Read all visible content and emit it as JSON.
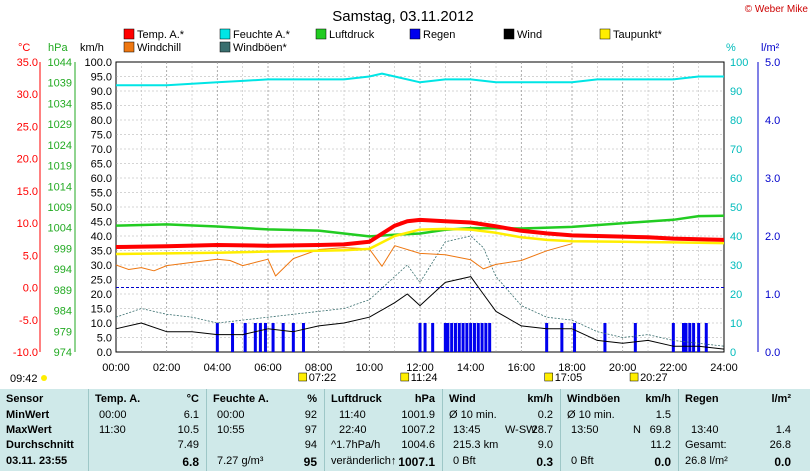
{
  "header": {
    "title": "Samstag, 03.11.2012",
    "copyright": "© Weber Mike"
  },
  "colors": {
    "temp": "#ff0000",
    "humidity": "#00e5e5",
    "pressure": "#22cc22",
    "rain": "#0000ee",
    "wind": "#000000",
    "dewpoint": "#ffee00",
    "windchill": "#ee7711",
    "gust": "#3a6f6f",
    "grid": "#888888"
  },
  "chart_data": {
    "type": "line",
    "title": "Samstag, 03.11.2012",
    "x_ticks": [
      "00:00",
      "02:00",
      "04:00",
      "06:00",
      "08:00",
      "10:00",
      "12:00",
      "14:00",
      "16:00",
      "18:00",
      "20:00",
      "22:00",
      "24:00"
    ],
    "axes": {
      "temp": {
        "label": "°C",
        "ticks": [
          "35.0",
          "30.0",
          "25.0",
          "20.0",
          "15.0",
          "10.0",
          "5.0",
          "0.0",
          "-5.0",
          "-10.0"
        ],
        "range": [
          -10,
          35
        ]
      },
      "pressure": {
        "label": "hPa",
        "ticks": [
          "1044",
          "1039",
          "1034",
          "1029",
          "1024",
          "1019",
          "1014",
          "1009",
          "1004",
          "999",
          "994",
          "989",
          "984",
          "979",
          "974"
        ],
        "range": [
          974,
          1044
        ]
      },
      "wind": {
        "label": "km/h",
        "ticks": [
          "100.0",
          "95.0",
          "90.0",
          "85.0",
          "80.0",
          "75.0",
          "70.0",
          "65.0",
          "60.0",
          "55.0",
          "50.0",
          "45.0",
          "40.0",
          "35.0",
          "30.0",
          "25.0",
          "20.0",
          "15.0",
          "10.0",
          "5.0",
          "0.0"
        ],
        "range": [
          0,
          100
        ]
      },
      "humidity": {
        "label": "%",
        "ticks": [
          "100",
          "90",
          "80",
          "70",
          "60",
          "50",
          "40",
          "30",
          "20",
          "10",
          "0"
        ],
        "range": [
          0,
          100
        ]
      },
      "rain": {
        "label": "l/m²",
        "ticks": [
          "5.0",
          "4.0",
          "3.0",
          "2.0",
          "1.0",
          "0.0"
        ],
        "range": [
          0,
          5
        ]
      }
    },
    "legend": [
      {
        "name": "Temp. A.*",
        "color": "#ff0000"
      },
      {
        "name": "Feuchte A.*",
        "color": "#00e5e5"
      },
      {
        "name": "Luftdruck",
        "color": "#22cc22"
      },
      {
        "name": "Regen",
        "color": "#0000ee"
      },
      {
        "name": "Wind",
        "color": "#000000"
      },
      {
        "name": "Taupunkt*",
        "color": "#ffee00"
      },
      {
        "name": "Windchill",
        "color": "#ee7711"
      },
      {
        "name": "Windböen*",
        "color": "#3a6f6f"
      }
    ],
    "series": {
      "temp": {
        "x": [
          0,
          2,
          4,
          6,
          8,
          9,
          10,
          11,
          11.5,
          12,
          13,
          14,
          15,
          16,
          17,
          18,
          19,
          20,
          21,
          22,
          23,
          24
        ],
        "y": [
          6.3,
          6.4,
          6.6,
          6.5,
          6.6,
          6.7,
          7.1,
          9.6,
          10.3,
          10.5,
          10.3,
          10.1,
          9.5,
          8.8,
          8.4,
          8.1,
          8.0,
          7.9,
          7.8,
          7.6,
          7.5,
          7.4
        ]
      },
      "humidity": {
        "x": [
          0,
          2,
          3,
          4,
          5,
          6,
          7,
          8,
          9,
          10,
          10.5,
          11,
          12,
          13,
          14,
          15,
          16,
          17,
          18,
          19,
          20,
          21,
          22,
          23,
          24
        ],
        "y": [
          92,
          92,
          92.5,
          93,
          93.5,
          94,
          94,
          94,
          94,
          95,
          96,
          95,
          93,
          94,
          94,
          93,
          93,
          93,
          93,
          94,
          94,
          94,
          94,
          95,
          95
        ]
      },
      "pressure": {
        "x": [
          0,
          2,
          4,
          6,
          8,
          10,
          11,
          12,
          13,
          14,
          16,
          18,
          20,
          22,
          23,
          24
        ],
        "y": [
          1004.5,
          1004.8,
          1004.3,
          1003.6,
          1003.3,
          1001.9,
          1002.3,
          1002.6,
          1003.5,
          1003.9,
          1003.8,
          1004.2,
          1005.1,
          1005.9,
          1006.8,
          1006.9
        ]
      },
      "dewpoint": {
        "x": [
          0,
          2,
          4,
          6,
          8,
          9,
          10,
          11,
          12,
          13,
          14,
          15,
          16,
          17,
          18,
          20,
          22,
          24
        ],
        "y": [
          5.2,
          5.3,
          5.4,
          5.6,
          5.7,
          5.8,
          6.0,
          8.0,
          9.0,
          9.1,
          9.0,
          8.5,
          7.8,
          7.4,
          7.2,
          7.1,
          7.0,
          6.9
        ]
      },
      "windchill": {
        "x": [
          0,
          0.5,
          1,
          1.5,
          2,
          3,
          4,
          4.5,
          5,
          5.5,
          6,
          6.3,
          7,
          8,
          9,
          10,
          10.5,
          11,
          12,
          13,
          14,
          14.5,
          15,
          16,
          17,
          18
        ],
        "y": [
          3.5,
          2.8,
          3.1,
          2.6,
          3.4,
          3.9,
          4.4,
          4.2,
          3.4,
          3.9,
          4.4,
          1.8,
          4.5,
          5.9,
          6.2,
          6.0,
          3.3,
          6.5,
          5.3,
          5.1,
          4.3,
          2.9,
          3.6,
          4.2,
          5.7,
          6.8
        ]
      },
      "wind": {
        "x": [
          0,
          1,
          2,
          3,
          4,
          5,
          6,
          7,
          8,
          9,
          10,
          11,
          11.5,
          12,
          13,
          14,
          14.5,
          15,
          16,
          17,
          18,
          19,
          20,
          21,
          22,
          23,
          24
        ],
        "y": [
          8,
          10,
          7,
          7,
          6,
          6,
          8,
          7,
          9,
          10,
          12,
          17,
          20,
          16,
          24,
          26,
          20,
          14,
          9,
          8,
          8,
          4,
          3,
          4,
          2,
          2,
          1
        ]
      },
      "gust": {
        "x": [
          0,
          1,
          2,
          3,
          4,
          5,
          6,
          7,
          8,
          9,
          10,
          11,
          11.5,
          12,
          13,
          14,
          14.5,
          15,
          16,
          17,
          18,
          19,
          20,
          21,
          22,
          23,
          24
        ],
        "y": [
          12,
          15,
          13,
          12,
          10,
          11,
          12,
          13,
          14,
          15,
          18,
          26,
          30,
          24,
          38,
          40,
          36,
          26,
          16,
          12,
          11,
          7,
          5,
          6,
          4,
          3,
          2
        ]
      },
      "rain": {
        "x": [
          4.0,
          4.6,
          5.1,
          5.5,
          5.7,
          5.9,
          6.2,
          6.6,
          7.0,
          7.4,
          12.0,
          12.2,
          12.5,
          13.0,
          13.1,
          13.25,
          13.4,
          13.55,
          13.7,
          13.85,
          14.0,
          14.15,
          14.3,
          14.45,
          14.6,
          14.75,
          17.0,
          17.6,
          18.1,
          19.3,
          20.5,
          22.0,
          22.4,
          22.5,
          22.65,
          22.8,
          23.0,
          23.3
        ],
        "y": [
          0.5,
          0.5,
          0.5,
          0.5,
          0.5,
          0.5,
          0.5,
          0.5,
          0.5,
          0.5,
          0.5,
          0.5,
          0.5,
          0.5,
          0.5,
          0.5,
          0.5,
          0.5,
          0.5,
          0.5,
          0.5,
          0.5,
          0.5,
          0.5,
          0.5,
          0.5,
          0.5,
          0.5,
          0.5,
          0.5,
          0.5,
          0.5,
          0.5,
          0.5,
          0.5,
          0.5,
          0.5,
          0.5
        ]
      }
    },
    "markers": {
      "left": "09:42",
      "items": [
        {
          "t": "07:22",
          "x": 7.37
        },
        {
          "t": "11:24",
          "x": 11.4
        },
        {
          "t": "17:05",
          "x": 17.08
        },
        {
          "t": "20:27",
          "x": 20.45
        }
      ]
    },
    "grid": true
  },
  "stats": {
    "sensor": {
      "head": "Sensor",
      "rows": [
        "MinWert",
        "MaxWert",
        "Durchschnitt",
        "03.11.  23:55"
      ]
    },
    "temp": {
      "head": "Temp. A.",
      "unit": "°C",
      "rows": [
        [
          "00:00",
          "6.1"
        ],
        [
          "11:30",
          "10.5"
        ],
        [
          "",
          "7.49"
        ],
        [
          "",
          "6.8"
        ]
      ]
    },
    "humidity": {
      "head": "Feuchte A.",
      "unit": "%",
      "rows": [
        [
          "00:00",
          "92"
        ],
        [
          "10:55",
          "97"
        ],
        [
          "",
          "94"
        ],
        [
          "7.27 g/m³",
          "95"
        ]
      ]
    },
    "pressure": {
      "head": "Luftdruck",
      "unit": "hPa",
      "rows": [
        [
          "11:40",
          "1001.9"
        ],
        [
          "22:40",
          "1007.2"
        ],
        [
          "^1.7hPa/h",
          "1004.6"
        ],
        [
          "veränderlich↑",
          "1007.1"
        ]
      ]
    },
    "wind": {
      "head": "Wind",
      "unit": "km/h",
      "rows": [
        [
          "Ø 10 min.",
          "",
          "0.2"
        ],
        [
          "13:45",
          "W-SW",
          "28.7"
        ],
        [
          "215.3 km",
          "",
          "9.0"
        ],
        [
          "0 Bft",
          "",
          "0.3"
        ]
      ]
    },
    "gust": {
      "head": "Windböen",
      "unit": "km/h",
      "rows": [
        [
          "Ø 10 min.",
          "",
          "1.5"
        ],
        [
          "13:50",
          "N",
          "69.8"
        ],
        [
          "",
          "",
          "11.2"
        ],
        [
          "0 Bft",
          "",
          "0.0"
        ]
      ]
    },
    "rain": {
      "head": "Regen",
      "unit": "l/m²",
      "rows": [
        [
          "",
          "",
          ""
        ],
        [
          "13:40",
          "",
          "1.4"
        ],
        [
          "Gesamt:",
          "",
          "26.8"
        ],
        [
          "26.8 l/m²",
          "",
          "0.0"
        ]
      ]
    }
  }
}
